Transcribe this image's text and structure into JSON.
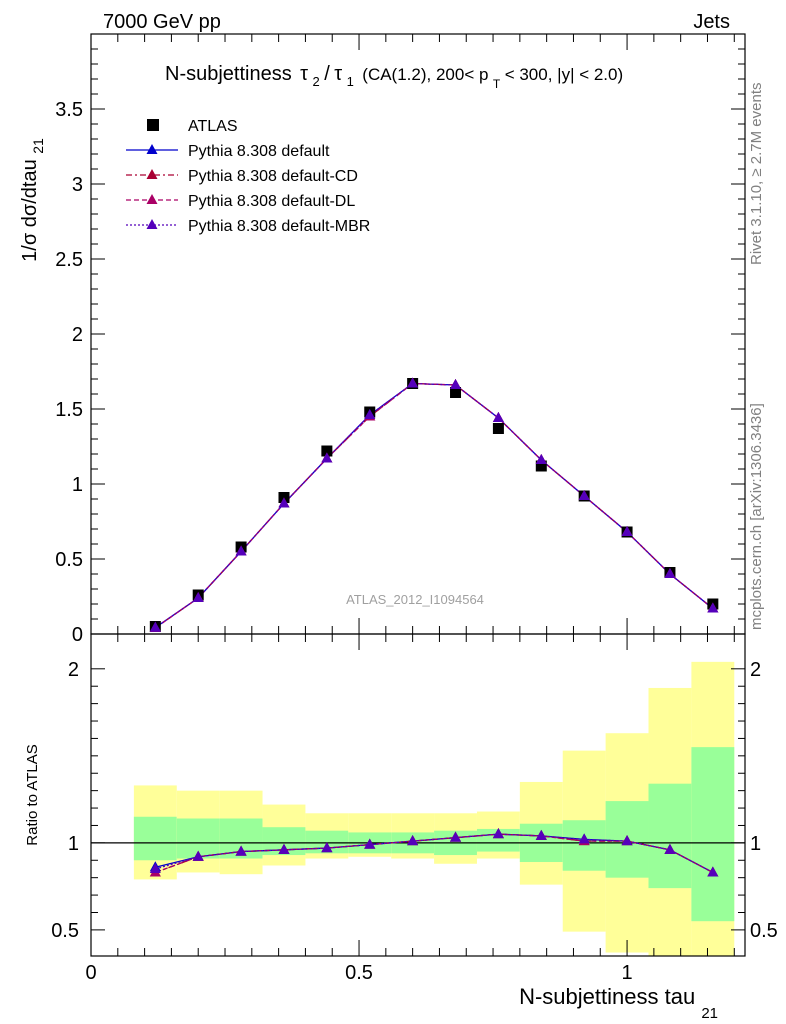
{
  "header": {
    "energy": "7000 GeV pp",
    "process": "Jets"
  },
  "side_labels": {
    "rivet": "Rivet 3.1.10, ≥ 2.7M events",
    "mcplots": "mcplots.cern.ch [arXiv:1306.3436]"
  },
  "watermark": "ATLAS_2012_I1094564",
  "colors": {
    "ATLAS": "#000000",
    "default": "#0000cc",
    "default-CD": "#aa0033",
    "default-DL": "#aa0066",
    "default-MBR": "#5500bb",
    "band_inner": "#99ff99",
    "band_outer": "#ffff99"
  },
  "chart_data": [
    {
      "type": "scatter",
      "panel": "main",
      "title_parts": {
        "prefix": "N-subjettiness",
        "tau2": "τ",
        "sub2": "2",
        "slash": "/",
        "tau1": "τ",
        "sub1": "1",
        "cuts_a": "(CA(1.2), 200< p",
        "cuts_sub": "T",
        "cuts_b": " < 300, |y| < 2.0)"
      },
      "ylabel_main": "1/σ dσ/dtau",
      "ylabel_sub": "21",
      "xlim": [
        0,
        1.22
      ],
      "ylim": [
        0,
        4.0
      ],
      "yticks": [
        0,
        0.5,
        1,
        1.5,
        2,
        2.5,
        3,
        3.5
      ],
      "ytick_labels": [
        "0",
        "0.5",
        "1",
        "1.5",
        "2",
        "2.5",
        "3",
        "3.5"
      ],
      "x": [
        0.12,
        0.2,
        0.28,
        0.36,
        0.44,
        0.52,
        0.6,
        0.68,
        0.76,
        0.84,
        0.92,
        1.0,
        1.08,
        1.16
      ],
      "series": [
        {
          "name": "ATLAS",
          "style": "square",
          "values": [
            0.05,
            0.26,
            0.58,
            0.91,
            1.22,
            1.48,
            1.67,
            1.61,
            1.37,
            1.12,
            0.92,
            0.68,
            0.41,
            0.2
          ]
        },
        {
          "name": "Pythia 8.308 default",
          "style": "solid",
          "values": [
            0.043,
            0.24,
            0.55,
            0.87,
            1.17,
            1.46,
            1.67,
            1.66,
            1.44,
            1.16,
            0.92,
            0.68,
            0.4,
            0.17
          ]
        },
        {
          "name": "Pythia 8.308 default-CD",
          "style": "dashdot",
          "values": [
            0.041,
            0.24,
            0.55,
            0.87,
            1.17,
            1.45,
            1.67,
            1.66,
            1.44,
            1.16,
            0.92,
            0.68,
            0.4,
            0.17
          ]
        },
        {
          "name": "Pythia 8.308 default-DL",
          "style": "dashed",
          "values": [
            0.041,
            0.24,
            0.55,
            0.87,
            1.17,
            1.45,
            1.67,
            1.66,
            1.44,
            1.16,
            0.92,
            0.68,
            0.4,
            0.17
          ]
        },
        {
          "name": "Pythia 8.308 default-MBR",
          "style": "dotted",
          "values": [
            0.042,
            0.24,
            0.55,
            0.87,
            1.17,
            1.46,
            1.67,
            1.66,
            1.44,
            1.16,
            0.92,
            0.68,
            0.4,
            0.17
          ]
        }
      ],
      "legend": "top-left"
    },
    {
      "type": "line",
      "panel": "ratio",
      "ylabel": "Ratio to ATLAS",
      "xlabel_main": "N-subjettiness tau",
      "xlabel_sub": "21",
      "xlim": [
        0,
        1.22
      ],
      "ylim": [
        0.35,
        2.2
      ],
      "yticks": [
        0.5,
        1,
        2
      ],
      "ytick_labels": [
        "0.5",
        "1",
        "2"
      ],
      "xticks": [
        0,
        0.5,
        1
      ],
      "xtick_labels": [
        "0",
        "0.5",
        "1"
      ],
      "bin_edges": [
        0.08,
        0.16,
        0.24,
        0.32,
        0.4,
        0.48,
        0.56,
        0.64,
        0.72,
        0.8,
        0.88,
        0.96,
        1.04,
        1.12,
        1.2
      ],
      "band_inner": {
        "low": [
          0.9,
          0.91,
          0.91,
          0.93,
          0.94,
          0.94,
          0.94,
          0.93,
          0.95,
          0.89,
          0.84,
          0.8,
          0.74,
          0.55
        ],
        "high": [
          1.15,
          1.14,
          1.14,
          1.09,
          1.07,
          1.06,
          1.06,
          1.07,
          1.08,
          1.11,
          1.13,
          1.24,
          1.34,
          1.55
        ]
      },
      "band_outer": {
        "low": [
          0.79,
          0.83,
          0.82,
          0.87,
          0.91,
          0.92,
          0.91,
          0.88,
          0.91,
          0.76,
          0.49,
          0.37,
          0.35,
          0.35
        ],
        "high": [
          1.33,
          1.3,
          1.3,
          1.22,
          1.17,
          1.17,
          1.17,
          1.17,
          1.18,
          1.35,
          1.53,
          1.63,
          1.89,
          2.04
        ]
      },
      "x": [
        0.12,
        0.2,
        0.28,
        0.36,
        0.44,
        0.52,
        0.6,
        0.68,
        0.76,
        0.84,
        0.92,
        1.0,
        1.08,
        1.16
      ],
      "series": [
        {
          "name": "Pythia 8.308 default",
          "style": "solid",
          "values": [
            0.86,
            0.92,
            0.95,
            0.96,
            0.97,
            0.99,
            1.01,
            1.03,
            1.05,
            1.04,
            1.02,
            1.01,
            0.96,
            0.83
          ]
        },
        {
          "name": "Pythia 8.308 default-CD",
          "style": "dashdot",
          "values": [
            0.83,
            0.92,
            0.95,
            0.96,
            0.97,
            0.99,
            1.01,
            1.03,
            1.05,
            1.04,
            1.01,
            1.01,
            0.96,
            0.83
          ]
        },
        {
          "name": "Pythia 8.308 default-DL",
          "style": "dashed",
          "values": [
            0.83,
            0.92,
            0.95,
            0.96,
            0.97,
            0.99,
            1.01,
            1.03,
            1.05,
            1.04,
            1.01,
            1.01,
            0.96,
            0.83
          ]
        },
        {
          "name": "Pythia 8.308 default-MBR",
          "style": "dotted",
          "values": [
            0.85,
            0.92,
            0.95,
            0.96,
            0.97,
            0.99,
            1.01,
            1.03,
            1.05,
            1.04,
            1.02,
            1.01,
            0.96,
            0.83
          ]
        }
      ]
    }
  ]
}
